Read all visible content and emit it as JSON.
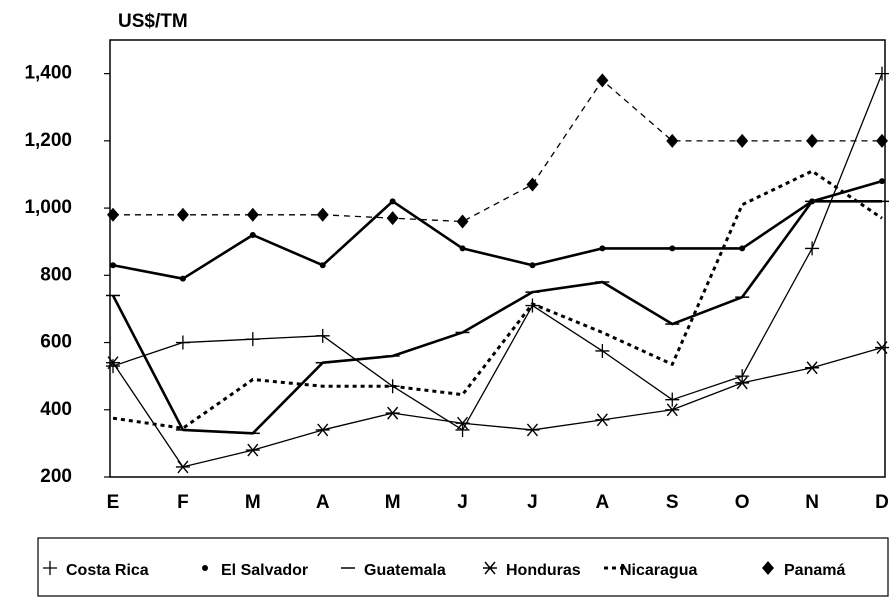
{
  "chart_data": {
    "type": "line",
    "ylabel": "US$/TM",
    "categories": [
      "E",
      "F",
      "M",
      "A",
      "M",
      "J",
      "J",
      "A",
      "S",
      "O",
      "N",
      "D"
    ],
    "ylim": [
      200,
      1500
    ],
    "yticks": [
      200,
      400,
      600,
      800,
      {
        "value": 1000,
        "label": "1,000"
      },
      {
        "value": 1200,
        "label": "1,200"
      },
      {
        "value": 1400,
        "label": "1,400"
      }
    ],
    "grid": false,
    "legend": "bottom",
    "series": [
      {
        "name": "Costa Rica",
        "color": "#000000",
        "line_style": "solid-thin",
        "marker": "plus",
        "values": [
          530,
          600,
          610,
          620,
          470,
          340,
          710,
          575,
          430,
          500,
          880,
          1400
        ]
      },
      {
        "name": "El Salvador",
        "color": "#000000",
        "line_style": "solid-thick",
        "marker": "dot",
        "values": [
          830,
          790,
          920,
          830,
          1020,
          880,
          830,
          880,
          880,
          880,
          1020,
          1080
        ]
      },
      {
        "name": "Guatemala",
        "color": "#000000",
        "line_style": "solid-thick",
        "marker": "dash",
        "values": [
          740,
          340,
          330,
          540,
          560,
          630,
          750,
          780,
          655,
          735,
          1020,
          1020
        ]
      },
      {
        "name": "Honduras",
        "color": "#000000",
        "line_style": "solid-thin",
        "marker": "asterisk",
        "values": [
          540,
          230,
          280,
          340,
          390,
          360,
          340,
          370,
          400,
          480,
          525,
          585
        ]
      },
      {
        "name": "Nicaragua",
        "color": "#000000",
        "line_style": "dotted-thick",
        "marker": "none",
        "values": [
          375,
          345,
          490,
          470,
          470,
          445,
          715,
          630,
          535,
          1010,
          1110,
          970
        ]
      },
      {
        "name": "Panamá",
        "color": "#000000",
        "line_style": "dashed",
        "marker": "diamond",
        "values": [
          980,
          980,
          980,
          980,
          970,
          960,
          1070,
          1380,
          1200,
          1200,
          1200,
          1200
        ]
      }
    ]
  }
}
